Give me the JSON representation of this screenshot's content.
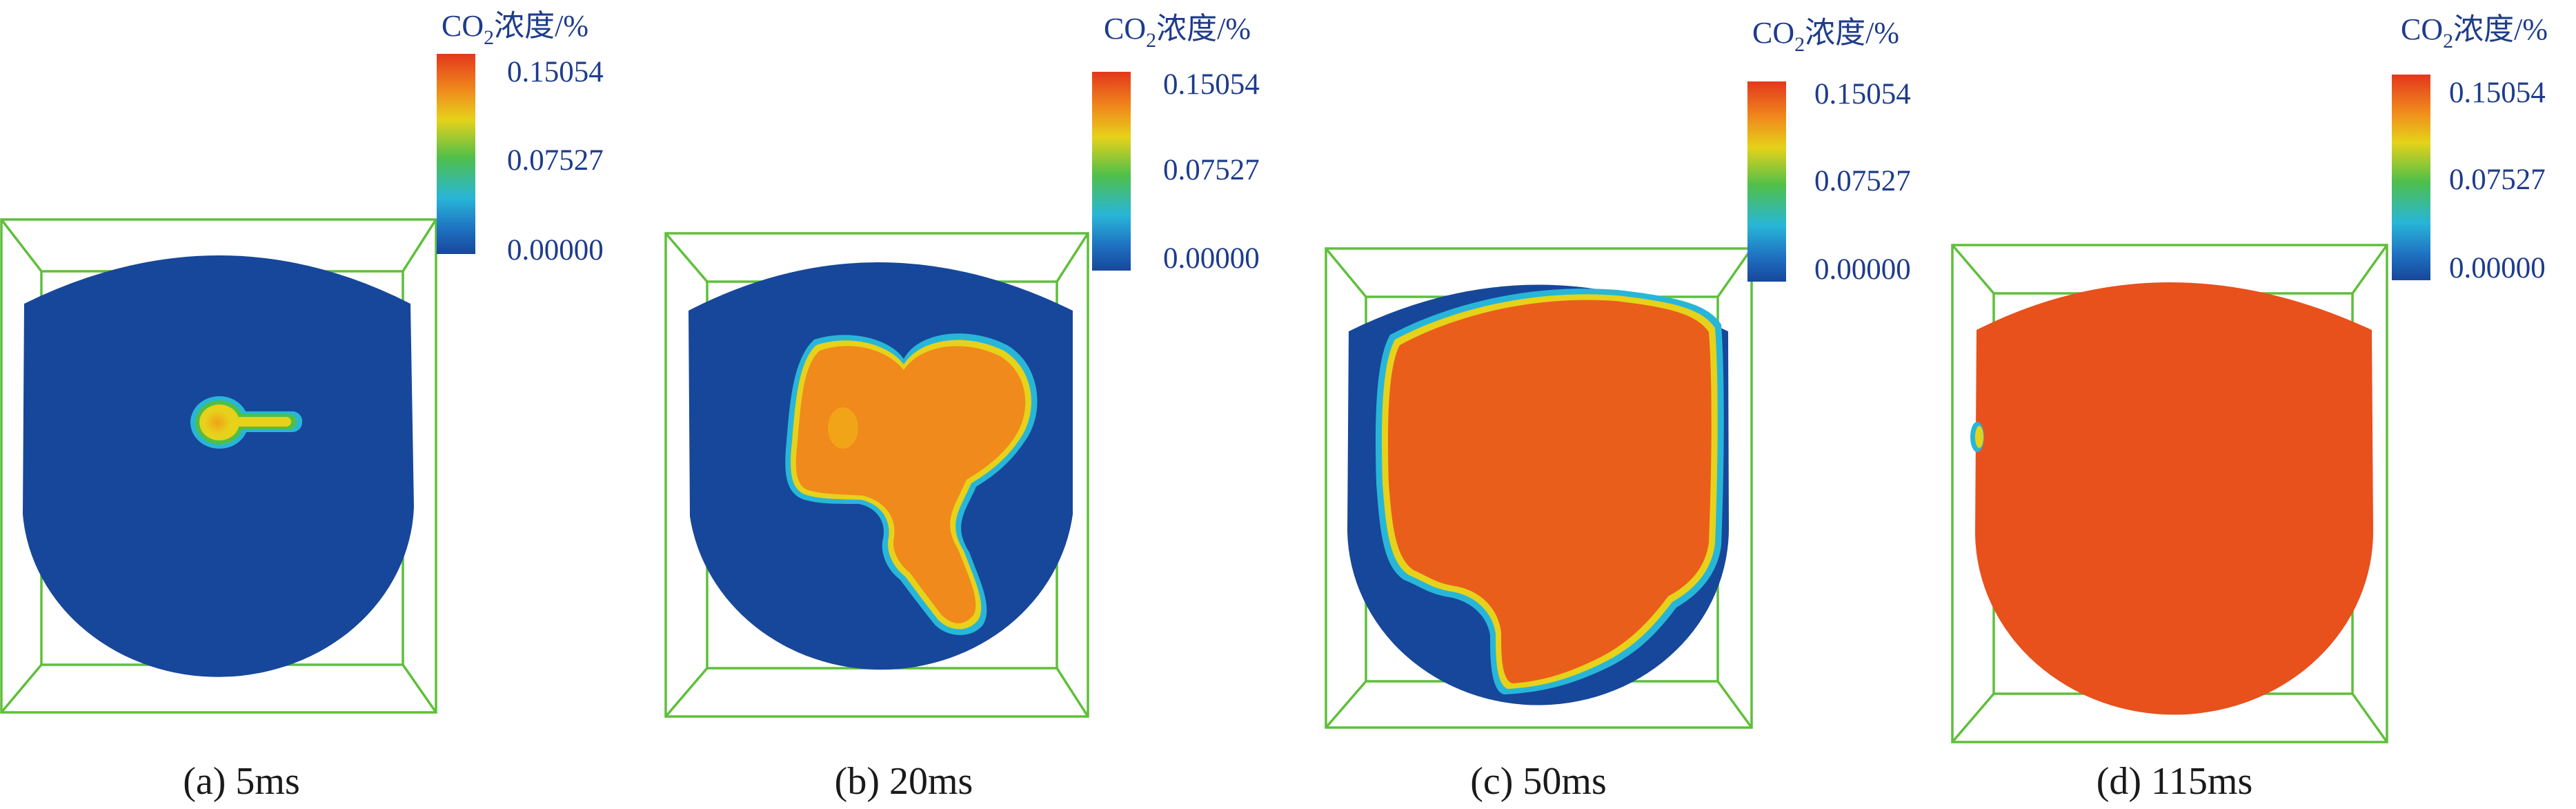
{
  "colorbar": {
    "title_prefix": "CO",
    "title_subscript": "2",
    "title_suffix": "浓度/%",
    "ticks": [
      "0.15054",
      "0.07527",
      "0.00000"
    ],
    "range": [
      0.0,
      0.15054
    ]
  },
  "panels": [
    {
      "caption": "(a) 5ms"
    },
    {
      "caption": "(b) 20ms"
    },
    {
      "caption": "(c) 50ms"
    },
    {
      "caption": "(d) 115ms"
    }
  ],
  "colors": {
    "field_low": "#17479a",
    "field_high": "#e8501c",
    "plume_core": "#f08a1c",
    "front_yellow": "#e6d21a",
    "front_green": "#4fbf4a",
    "front_cyan": "#28b6d8",
    "wireframe": "#5fbf3a",
    "label_blue": "#1e3c8c"
  }
}
